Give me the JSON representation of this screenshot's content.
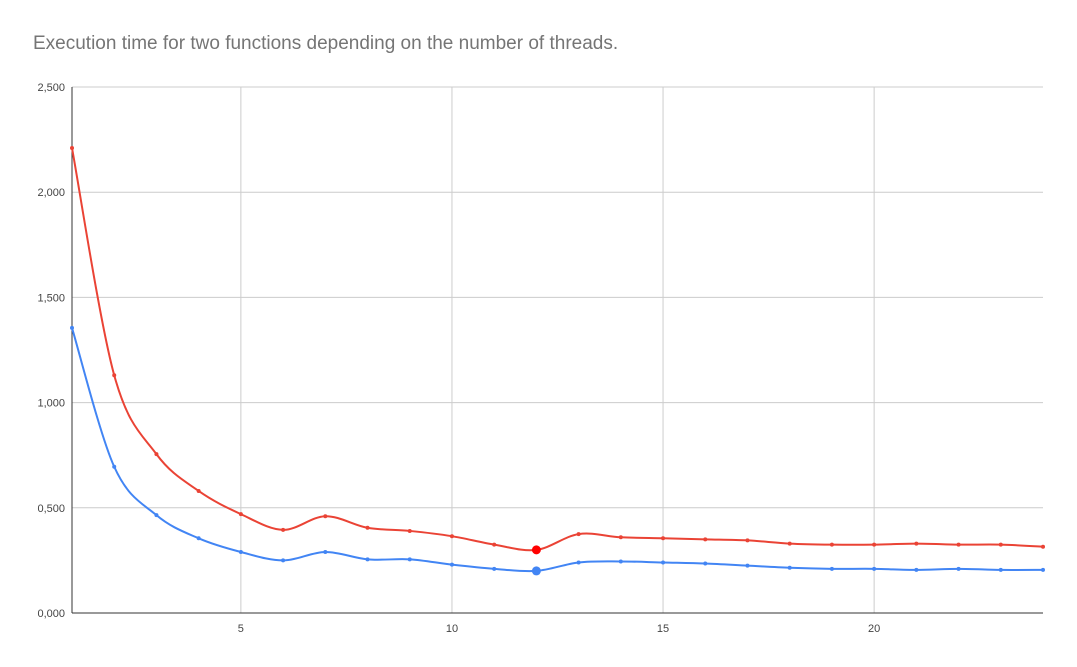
{
  "chart_data": {
    "type": "line",
    "title": "Execution time for two functions depending on the number of threads.",
    "xlabel": "",
    "ylabel": "",
    "xlim": [
      1,
      24
    ],
    "ylim": [
      0,
      2.5
    ],
    "x_ticks": [
      5,
      10,
      15,
      20
    ],
    "x_tick_labels": [
      "5",
      "10",
      "15",
      "20"
    ],
    "y_ticks": [
      0,
      0.5,
      1.0,
      1.5,
      2.0,
      2.5
    ],
    "y_tick_labels": [
      "0,000",
      "0,500",
      "1,000",
      "1,500",
      "2,000",
      "2,500"
    ],
    "grid": true,
    "x": [
      1,
      2,
      3,
      4,
      5,
      6,
      7,
      8,
      9,
      10,
      11,
      12,
      13,
      14,
      15,
      16,
      17,
      18,
      19,
      20,
      21,
      22,
      23,
      24
    ],
    "series": [
      {
        "color": "#ea4335",
        "values": [
          2.21,
          1.13,
          0.755,
          0.58,
          0.47,
          0.395,
          0.46,
          0.405,
          0.39,
          0.365,
          0.325,
          0.3,
          0.375,
          0.36,
          0.355,
          0.35,
          0.345,
          0.33,
          0.325,
          0.325,
          0.33,
          0.325,
          0.325,
          0.315
        ],
        "highlight_x": 12
      },
      {
        "color": "#4285f4",
        "values": [
          1.355,
          0.695,
          0.465,
          0.355,
          0.29,
          0.25,
          0.29,
          0.255,
          0.255,
          0.23,
          0.21,
          0.2,
          0.24,
          0.245,
          0.24,
          0.235,
          0.225,
          0.215,
          0.21,
          0.21,
          0.205,
          0.21,
          0.205,
          0.205
        ],
        "highlight_x": 12
      }
    ]
  }
}
